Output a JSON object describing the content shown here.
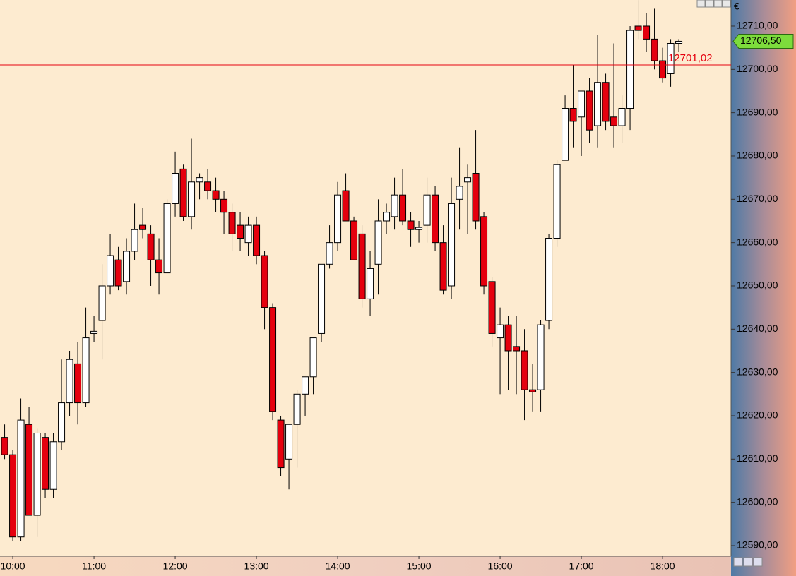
{
  "chart_data": {
    "type": "candlestick",
    "currency": "€",
    "x": [
      9.9,
      10.0,
      10.1,
      10.2,
      10.3,
      10.4,
      10.5,
      10.6,
      10.7,
      10.8,
      10.9,
      11.0,
      11.1,
      11.2,
      11.3,
      11.4,
      11.5,
      11.6,
      11.7,
      11.8,
      11.9,
      12.0,
      12.1,
      12.2,
      12.3,
      12.4,
      12.5,
      12.6,
      12.7,
      12.8,
      12.9,
      13.0,
      13.1,
      13.2,
      13.3,
      13.4,
      13.5,
      13.6,
      13.7,
      13.8,
      13.9,
      14.0,
      14.1,
      14.2,
      14.3,
      14.4,
      14.5,
      14.6,
      14.7,
      14.8,
      14.9,
      15.0,
      15.1,
      15.2,
      15.3,
      15.4,
      15.5,
      15.6,
      15.7,
      15.8,
      15.9,
      16.0,
      16.1,
      16.2,
      16.3,
      16.4,
      16.5,
      16.6,
      16.7,
      16.8,
      16.9,
      17.0,
      17.1,
      17.2,
      17.3,
      17.4,
      17.5,
      17.6,
      17.7,
      17.8,
      17.9,
      18.0,
      18.1,
      18.2
    ],
    "open": [
      12615,
      12611,
      12592,
      12618,
      12597,
      12615,
      12603,
      12614,
      12623,
      12632,
      12623,
      12639,
      12642,
      12650,
      12656,
      12651,
      12658,
      12664,
      12662,
      12656,
      12653,
      12669,
      12677,
      12666,
      12674,
      12674,
      12672,
      12670,
      12667,
      12664,
      12660,
      12664,
      12657,
      12645,
      12619,
      12610,
      12618,
      12625,
      12629,
      12639,
      12655,
      12660,
      12672,
      12665,
      12662,
      12647,
      12655,
      12665,
      12666,
      12671,
      12665,
      12663,
      12664,
      12671,
      12660,
      12650,
      12670,
      12674,
      12676,
      12666,
      12651,
      12638,
      12641,
      12636,
      12635,
      12626,
      12626,
      12642,
      12661,
      12679,
      12691,
      12689,
      12695,
      12687,
      12697,
      12689,
      12687,
      12691,
      12710,
      12710,
      12707,
      12702,
      12699,
      12706
    ],
    "high": [
      12618,
      12612,
      12624,
      12622,
      12617,
      12616,
      12616,
      12633,
      12635,
      12637,
      12645,
      12643,
      12655,
      12662,
      12659,
      12661,
      12669,
      12668,
      12664,
      12661,
      12670,
      12681,
      12678,
      12684,
      12676,
      12677,
      12675,
      12672,
      12669,
      12667,
      12666,
      12666,
      12658,
      12646,
      12620,
      12618,
      12626,
      12629,
      12638,
      12655,
      12664,
      12674,
      12676,
      12666,
      12664,
      12658,
      12670,
      12669,
      12675,
      12677,
      12667,
      12665,
      12675,
      12673,
      12664,
      12675,
      12682,
      12678,
      12686,
      12667,
      12652,
      12645,
      12643,
      12643,
      12640,
      12632,
      12642,
      12662,
      12679,
      12694,
      12701,
      12695,
      12698,
      12708,
      12699,
      12706,
      12694,
      12710,
      12716,
      12713,
      12714,
      12705,
      12707,
      12707
    ],
    "low": [
      12610,
      12591,
      12591,
      12597,
      12592,
      12601,
      12601,
      12612,
      12620,
      12618,
      12622,
      12637,
      12633,
      12648,
      12649,
      12648,
      12656,
      12661,
      12650,
      12648,
      12653,
      12666,
      12665,
      12663,
      12670,
      12670,
      12667,
      12662,
      12658,
      12658,
      12657,
      12655,
      12640,
      12619,
      12606,
      12603,
      12608,
      12620,
      12625,
      12637,
      12654,
      12658,
      12665,
      12656,
      12645,
      12643,
      12648,
      12662,
      12663,
      12664,
      12659,
      12660,
      12660,
      12658,
      12648,
      12647,
      12663,
      12662,
      12663,
      12648,
      12636,
      12625,
      12626,
      12625,
      12619,
      12621,
      12621,
      12640,
      12659,
      12679,
      12682,
      12680,
      12683,
      12682,
      12686,
      12682,
      12683,
      12686,
      12707,
      12704,
      12700,
      12697,
      12696,
      12704
    ],
    "close": [
      12611,
      12592,
      12619,
      12597,
      12616,
      12603,
      12614,
      12623,
      12633,
      12623,
      12638,
      12639.5,
      12650,
      12657,
      12650,
      12658,
      12663,
      12663,
      12656,
      12653,
      12669,
      12676,
      12666,
      12674,
      12675,
      12672,
      12670,
      12667,
      12662,
      12661,
      12664,
      12657,
      12645,
      12621,
      12608,
      12618,
      12625,
      12629,
      12638,
      12655,
      12660,
      12671,
      12665,
      12656,
      12647,
      12654,
      12665,
      12667,
      12671,
      12665,
      12663,
      12663.5,
      12671,
      12660,
      12649,
      12669,
      12673,
      12675,
      12665,
      12650,
      12639,
      12641,
      12635,
      12635,
      12626,
      12625.5,
      12641,
      12661,
      12678,
      12691,
      12688,
      12695,
      12686,
      12697,
      12688,
      12687,
      12691,
      12709,
      12709,
      12707,
      12702,
      12698,
      12706,
      12706.5
    ],
    "up_color": "#ffffff",
    "down_color": "#e5000e",
    "xlim": [
      9.843,
      18.843
    ],
    "ylim": [
      12587.55,
      12716.03
    ],
    "xticks": [
      {
        "value": 10,
        "label": "10:00"
      },
      {
        "value": 11,
        "label": "11:00"
      },
      {
        "value": 12,
        "label": "12:00"
      },
      {
        "value": 13,
        "label": "13:00"
      },
      {
        "value": 14,
        "label": "14:00"
      },
      {
        "value": 15,
        "label": "15:00"
      },
      {
        "value": 16,
        "label": "16:00"
      },
      {
        "value": 17,
        "label": "17:00"
      },
      {
        "value": 18,
        "label": "18:00"
      }
    ],
    "yticks": [
      {
        "value": 12590,
        "label": "12590,00"
      },
      {
        "value": 12600,
        "label": "12600,00"
      },
      {
        "value": 12610,
        "label": "12610,00"
      },
      {
        "value": 12620,
        "label": "12620,00"
      },
      {
        "value": 12630,
        "label": "12630,00"
      },
      {
        "value": 12640,
        "label": "12640,00"
      },
      {
        "value": 12650,
        "label": "12650,00"
      },
      {
        "value": 12660,
        "label": "12660,00"
      },
      {
        "value": 12670,
        "label": "12670,00"
      },
      {
        "value": 12680,
        "label": "12680,00"
      },
      {
        "value": 12690,
        "label": "12690,00"
      },
      {
        "value": 12700,
        "label": "12700,00"
      },
      {
        "value": 12710,
        "label": "12710,00"
      }
    ],
    "reference_line": {
      "value": 12701.02,
      "label": "12701,02",
      "color": "#e5000e"
    },
    "last_price": {
      "value": 12706.5,
      "label": "12706,50",
      "color": "#7ddc3c"
    }
  }
}
